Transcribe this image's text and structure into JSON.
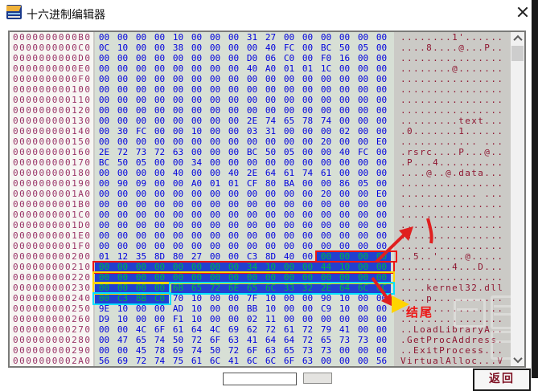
{
  "window": {
    "title": "十六进制编辑器"
  },
  "hex_editor": {
    "rows": [
      {
        "addr": "0000000000B0",
        "bytes": "00 00 00 00 10 00 00 00 31 27 00 00 00 00 00 00",
        "ascii": "........1'......"
      },
      {
        "addr": "0000000000C0",
        "bytes": "0C 10 00 00 38 00 00 00 00 40 FC 00 BC 50 05 00",
        "ascii": "....8....@...P.."
      },
      {
        "addr": "0000000000D0",
        "bytes": "00 00 00 00 00 00 00 00 D0 06 C0 00 F0 16 00 00",
        "ascii": "................"
      },
      {
        "addr": "0000000000E0",
        "bytes": "00 00 00 00 00 00 00 00 40 A0 01 01 1C 00 00 00",
        "ascii": "........@......."
      },
      {
        "addr": "0000000000F0",
        "bytes": "00 00 00 00 00 00 00 00 00 00 00 00 00 00 00 00",
        "ascii": "................"
      },
      {
        "addr": "000000000100",
        "bytes": "00 00 00 00 00 00 00 00 00 00 00 00 00 00 00 00",
        "ascii": "................"
      },
      {
        "addr": "000000000110",
        "bytes": "00 00 00 00 00 00 00 00 00 00 00 00 00 00 00 00",
        "ascii": "................"
      },
      {
        "addr": "000000000120",
        "bytes": "00 00 00 00 00 00 00 00 00 00 00 00 00 00 00 00",
        "ascii": "................"
      },
      {
        "addr": "000000000130",
        "bytes": "00 00 00 00 00 00 00 00 2E 74 65 78 74 00 00 00",
        "ascii": ".........text..."
      },
      {
        "addr": "000000000140",
        "bytes": "00 30 FC 00 00 10 00 00 03 31 00 00 00 02 00 00",
        "ascii": ".0.......1......"
      },
      {
        "addr": "000000000150",
        "bytes": "00 00 00 00 00 00 00 00 00 00 00 00 20 00 00 E0",
        "ascii": "............ ..."
      },
      {
        "addr": "000000000160",
        "bytes": "2E 72 73 72 63 00 00 00 BC 50 05 00 00 40 FC 00",
        "ascii": ".rsrc....P...@.."
      },
      {
        "addr": "000000000170",
        "bytes": "BC 50 05 00 00 34 00 00 00 00 00 00 00 00 00 00",
        "ascii": ".P...4.........."
      },
      {
        "addr": "000000000180",
        "bytes": "00 00 00 00 40 00 00 40 2E 64 61 74 61 00 00 00",
        "ascii": "....@..@.data..."
      },
      {
        "addr": "000000000190",
        "bytes": "00 90 09 00 00 A0 01 01 CF 80 BA 00 00 86 05 00",
        "ascii": "................"
      },
      {
        "addr": "0000000001A0",
        "bytes": "00 00 00 00 00 00 00 00 00 00 00 00 20 00 00 E0",
        "ascii": "............ ..."
      },
      {
        "addr": "0000000001B0",
        "bytes": "00 00 00 00 00 00 00 00 00 00 00 00 00 00 00 00",
        "ascii": "................"
      },
      {
        "addr": "0000000001C0",
        "bytes": "00 00 00 00 00 00 00 00 00 00 00 00 00 00 00 00",
        "ascii": "................"
      },
      {
        "addr": "0000000001D0",
        "bytes": "00 00 00 00 00 00 00 00 00 00 00 00 00 00 00 00",
        "ascii": "................"
      },
      {
        "addr": "0000000001E0",
        "bytes": "00 00 00 00 00 00 00 00 00 00 00 00 00 00 00 00",
        "ascii": "................"
      },
      {
        "addr": "0000000001F0",
        "bytes": "00 00 00 00 00 00 00 00 00 00 00 00 00 00 00 00",
        "ascii": "................"
      },
      {
        "addr": "000000000200",
        "bytes": "01 12 35 8D 80 27 00 00 C3 8D 40 00 00 00 00 00",
        "ascii": "..5..'....@.....",
        "sel": [
          12,
          15
        ]
      },
      {
        "addr": "000000000210",
        "bytes": "00 00 00 00 00 00 00 00 34 10 00 00 44 10 00 00",
        "ascii": "........4...D...",
        "sel": [
          0,
          15
        ]
      },
      {
        "addr": "000000000220",
        "bytes": "00 00 00 00 00 00 00 00 00 00 00 00 00 00 00 00",
        "ascii": "................",
        "sel": [
          0,
          15
        ]
      },
      {
        "addr": "000000000230",
        "bytes": "00 00 00 00 6B 65 72 6E 65 6C 33 32 2E 64 6C 6C",
        "ascii": "....kernel32.dll",
        "sel": [
          0,
          15
        ]
      },
      {
        "addr": "000000000240",
        "bytes": "00 C3 8B C0 70 10 00 00 7F 10 00 00 90 10 00 00",
        "ascii": "....p...........",
        "sel": [
          0,
          3
        ]
      },
      {
        "addr": "000000000250",
        "bytes": "9E 10 00 00 AD 10 00 00 BB 10 00 00 C9 10 00 00",
        "ascii": "................"
      },
      {
        "addr": "000000000260",
        "bytes": "D9 10 00 00 F1 10 00 00 02 11 00 00 00 00 00 00",
        "ascii": "................"
      },
      {
        "addr": "000000000270",
        "bytes": "00 00 4C 6F 61 64 4C 69 62 72 61 72 79 41 00 00",
        "ascii": "..LoadLibraryA.."
      },
      {
        "addr": "000000000280",
        "bytes": "00 47 65 74 50 72 6F 63 41 64 64 72 65 73 73 00",
        "ascii": ".GetProcAddress."
      },
      {
        "addr": "000000000290",
        "bytes": "00 00 45 78 69 74 50 72 6F 63 65 73 73 00 00 00",
        "ascii": "..ExitProcess..."
      },
      {
        "addr": "0000000002A0",
        "bytes": "56 69 72 74 75 61 6C 41 6C 6C 6F 63 00 00 00 56",
        "ascii": "VirtualAlloc...V"
      }
    ]
  },
  "annotations": {
    "ending_label": "结尾"
  },
  "footer": {
    "return_label": "返回"
  },
  "colors": {
    "address_color": "#993366",
    "hex_color": "#0000dd",
    "ascii_color": "#8e1530",
    "selection_bg": "#2240d0",
    "selection_text": "#00b34a",
    "highlight_red": "#ee1515",
    "highlight_yellow": "#ffd400",
    "highlight_cyan": "#00e0ff"
  }
}
